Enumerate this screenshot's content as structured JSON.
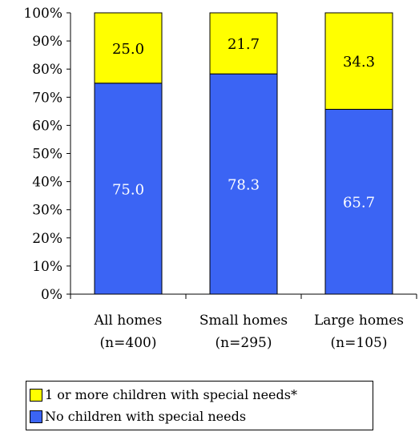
{
  "chart_data": {
    "type": "bar",
    "stacked": true,
    "percent_stacked": true,
    "categories": [
      "All homes (n=400)",
      "Small homes (n=295)",
      "Large homes (n=105)"
    ],
    "category_lines": [
      [
        "All homes",
        "(n=400)"
      ],
      [
        "Small homes",
        "(n=295)"
      ],
      [
        "Large homes",
        "(n=105)"
      ]
    ],
    "series": [
      {
        "name": "No children with special needs",
        "values": [
          75.0,
          78.3,
          65.7
        ],
        "color": "#3b64f4",
        "label_color": "#ffffff"
      },
      {
        "name": "1 or more children with special needs*",
        "values": [
          25.0,
          21.7,
          34.3
        ],
        "color": "#ffff00",
        "label_color": "#000000"
      }
    ],
    "data_labels": [
      [
        "75.0",
        "78.3",
        "65.7"
      ],
      [
        "25.0",
        "21.7",
        "34.3"
      ]
    ],
    "ylim": [
      0,
      100
    ],
    "yticks": [
      "0%",
      "10%",
      "20%",
      "30%",
      "40%",
      "50%",
      "60%",
      "70%",
      "80%",
      "90%",
      "100%"
    ],
    "grid": false,
    "legend_position": "bottom",
    "xlabel": "",
    "ylabel": ""
  },
  "legend": [
    {
      "label": "1 or more children with special needs*",
      "color": "#ffff00"
    },
    {
      "label": "No children with special needs",
      "color": "#3b64f4"
    }
  ]
}
